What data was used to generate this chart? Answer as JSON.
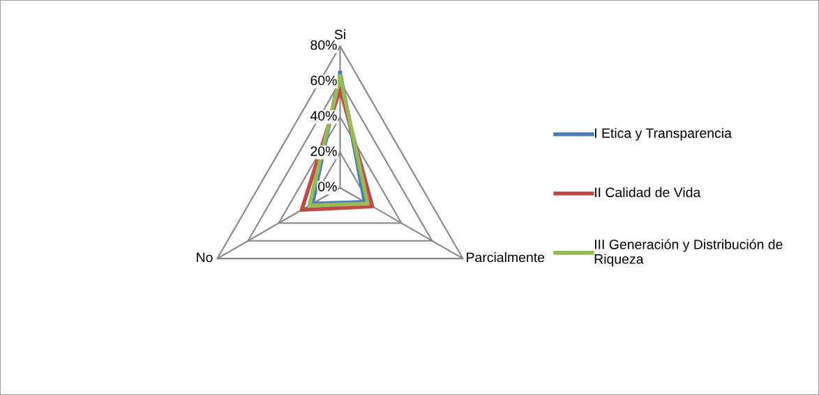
{
  "chart_data": {
    "type": "radar",
    "categories": [
      "Si",
      "Parcialmente",
      "No"
    ],
    "ylim": [
      0,
      80
    ],
    "yticks": [
      {
        "value": 0,
        "label": "0%"
      },
      {
        "value": 20,
        "label": "20%"
      },
      {
        "value": 40,
        "label": "40%"
      },
      {
        "value": 60,
        "label": "60%"
      },
      {
        "value": 80,
        "label": "80%"
      }
    ],
    "grid": true,
    "legend": "right",
    "marker": "none",
    "line_style": "solid",
    "series": [
      {
        "name": "I Etica y Transparencia",
        "color": "#4a7ebb",
        "values": [
          65,
          16,
          18
        ]
      },
      {
        "name": "II Calidad de Vida",
        "color": "#be4b48",
        "values": [
          56,
          21,
          25
        ]
      },
      {
        "name": "III Generación y Distribución de Riqueza",
        "color": "#98b954",
        "values": [
          63,
          18,
          20
        ]
      }
    ]
  }
}
